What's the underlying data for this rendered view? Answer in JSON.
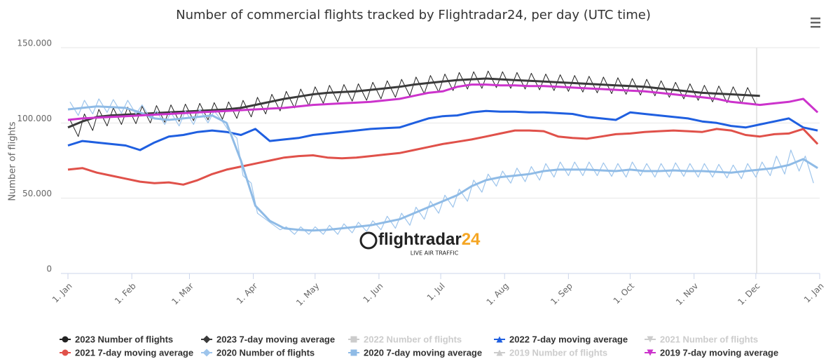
{
  "chart_data": {
    "type": "line",
    "title": "Number of commercial flights tracked by Flightradar24, per day (UTC time)",
    "y_label": "Number of flights",
    "watermark_main": "flightradar",
    "watermark_num": "24",
    "watermark_sub": "LIVE AIR TRAFFIC",
    "xlim": [
      0,
      365
    ],
    "xticks": [
      {
        "value": 0,
        "label": "1. Jan"
      },
      {
        "value": 31,
        "label": "1. Feb"
      },
      {
        "value": 59,
        "label": "1. Mar"
      },
      {
        "value": 90,
        "label": "1. Apr"
      },
      {
        "value": 120,
        "label": "1. May"
      },
      {
        "value": 151,
        "label": "1. Jun"
      },
      {
        "value": 181,
        "label": "1. Jul"
      },
      {
        "value": 212,
        "label": "1. Aug"
      },
      {
        "value": 243,
        "label": "1. Sep"
      },
      {
        "value": 273,
        "label": "1. Oct"
      },
      {
        "value": 304,
        "label": "1. Nov"
      },
      {
        "value": 334,
        "label": "1. Dec"
      },
      {
        "value": 365,
        "label": "1. Jan"
      }
    ],
    "ylim": [
      0,
      150000
    ],
    "yticks": [
      0,
      {
        "value": 50000,
        "label": "50.000"
      },
      {
        "value": 100000,
        "label": "100.000"
      },
      {
        "value": 150000,
        "label": "150.000"
      }
    ],
    "grid": true,
    "series": [
      {
        "name": "2023 Number of flights",
        "color": "#222222",
        "marker": "circle",
        "line_width": 1,
        "x": [
          1,
          5,
          8,
          12,
          15,
          19,
          22,
          26,
          29,
          33,
          36,
          40,
          43,
          47,
          50,
          54,
          57,
          61,
          64,
          68,
          71,
          75,
          78,
          82,
          85,
          89,
          92,
          96,
          99,
          103,
          106,
          110,
          113,
          117,
          120,
          124,
          127,
          131,
          134,
          138,
          141,
          145,
          148,
          152,
          155,
          159,
          162,
          166,
          169,
          173,
          176,
          180,
          183,
          187,
          190,
          194,
          197,
          201,
          204,
          208,
          211,
          215,
          218,
          222,
          225,
          229,
          232,
          236,
          239,
          243,
          246,
          250,
          253,
          257,
          260,
          264,
          267,
          271,
          274,
          278,
          281,
          285,
          288,
          292,
          295,
          299,
          302,
          306,
          309,
          313,
          316,
          320,
          323,
          327,
          330,
          334
        ],
        "values": [
          102000,
          91000,
          106000,
          95000,
          109000,
          98000,
          110000,
          99000,
          110500,
          99500,
          111000,
          100000,
          111500,
          100500,
          112000,
          101000,
          112500,
          101500,
          113000,
          102000,
          113500,
          102500,
          114000,
          103000,
          115000,
          104000,
          117000,
          106000,
          119000,
          108000,
          121000,
          110000,
          122500,
          111500,
          124000,
          113000,
          125000,
          114000,
          125500,
          114500,
          126000,
          115000,
          127000,
          116000,
          128000,
          117000,
          129000,
          118000,
          130500,
          119500,
          131500,
          120500,
          132500,
          121500,
          133500,
          122500,
          134000,
          123000,
          134500,
          123500,
          134000,
          123000,
          133500,
          122500,
          133000,
          122000,
          132500,
          121500,
          132000,
          121000,
          131500,
          120500,
          131000,
          120000,
          130500,
          119500,
          130000,
          119000,
          129500,
          118500,
          129000,
          118000,
          128000,
          117000,
          127000,
          116000,
          126000,
          115000,
          125000,
          114000,
          124500,
          113500,
          124000,
          113000,
          123500,
          112500
        ]
      },
      {
        "name": "2023 7-day moving average",
        "color": "#3a3a3a",
        "marker": "diamond",
        "line_width": 3,
        "x": [
          0,
          7,
          14,
          21,
          28,
          35,
          42,
          49,
          56,
          63,
          70,
          77,
          84,
          91,
          98,
          105,
          112,
          119,
          126,
          133,
          140,
          147,
          154,
          161,
          168,
          175,
          182,
          189,
          196,
          203,
          210,
          217,
          224,
          231,
          238,
          245,
          252,
          259,
          266,
          273,
          280,
          287,
          294,
          301,
          308,
          315,
          322,
          329,
          336
        ],
        "values": [
          97000,
          101000,
          104000,
          105000,
          105500,
          106000,
          106500,
          107000,
          107500,
          108000,
          108500,
          109000,
          110000,
          112000,
          114000,
          116000,
          117500,
          119000,
          120000,
          120500,
          121000,
          122000,
          123000,
          124000,
          125500,
          126500,
          127500,
          128500,
          129000,
          129500,
          129000,
          128500,
          128000,
          127500,
          127000,
          126500,
          126000,
          125500,
          125000,
          124500,
          124000,
          123000,
          122000,
          121000,
          120000,
          119500,
          119000,
          118500,
          118000
        ]
      },
      {
        "name": "2022 Number of flights",
        "color": "#cccccc",
        "marker": "square",
        "hidden": true
      },
      {
        "name": "2022 7-day moving average",
        "color": "#1f5fe0",
        "marker": "triangle",
        "line_width": 3,
        "x": [
          0,
          7,
          14,
          21,
          28,
          35,
          42,
          49,
          56,
          63,
          70,
          77,
          84,
          91,
          98,
          105,
          112,
          119,
          126,
          133,
          140,
          147,
          154,
          161,
          168,
          175,
          182,
          189,
          196,
          203,
          210,
          217,
          224,
          231,
          238,
          245,
          252,
          259,
          266,
          273,
          280,
          287,
          294,
          301,
          308,
          315,
          322,
          329,
          336,
          343,
          350,
          357,
          364
        ],
        "values": [
          85000,
          88000,
          87000,
          86000,
          85000,
          82000,
          87000,
          91000,
          92000,
          94000,
          95000,
          94000,
          92000,
          96000,
          88000,
          89000,
          90000,
          92000,
          93000,
          94000,
          95000,
          96000,
          96500,
          97000,
          100000,
          103000,
          104500,
          105000,
          107000,
          108000,
          107500,
          107500,
          107000,
          107000,
          106500,
          106000,
          104000,
          103000,
          102000,
          107000,
          106000,
          105000,
          104000,
          103000,
          101000,
          100000,
          98000,
          97000,
          99000,
          101000,
          103000,
          97000,
          95000
        ]
      },
      {
        "name": "2021 Number of flights",
        "color": "#cccccc",
        "marker": "triangle-down",
        "hidden": true
      },
      {
        "name": "2021 7-day moving average",
        "color": "#e0514a",
        "marker": "circle",
        "line_width": 3,
        "x": [
          0,
          7,
          14,
          21,
          28,
          35,
          42,
          49,
          56,
          63,
          70,
          77,
          84,
          91,
          98,
          105,
          112,
          119,
          126,
          133,
          140,
          147,
          154,
          161,
          168,
          175,
          182,
          189,
          196,
          203,
          210,
          217,
          224,
          231,
          238,
          245,
          252,
          259,
          266,
          273,
          280,
          287,
          294,
          301,
          308,
          315,
          322,
          329,
          336,
          343,
          350,
          357,
          364
        ],
        "values": [
          69000,
          70000,
          67000,
          65000,
          63000,
          61000,
          60000,
          60500,
          59000,
          62000,
          66000,
          69000,
          71000,
          73000,
          75000,
          77000,
          78000,
          78500,
          77000,
          76500,
          77000,
          78000,
          79000,
          80000,
          82000,
          84000,
          86000,
          87500,
          89000,
          91000,
          93000,
          95000,
          95000,
          94500,
          91000,
          90000,
          89500,
          91000,
          92500,
          93000,
          94000,
          94500,
          95000,
          94500,
          94000,
          96000,
          95000,
          92000,
          91000,
          92500,
          93000,
          96000,
          86000
        ]
      },
      {
        "name": "2020 Number of flights",
        "color": "#9ec5ec",
        "marker": "diamond",
        "line_width": 1.2,
        "x": [
          1,
          5,
          8,
          12,
          15,
          19,
          22,
          26,
          29,
          33,
          36,
          40,
          43,
          47,
          50,
          54,
          57,
          61,
          64,
          68,
          71,
          75,
          78,
          82,
          85,
          89,
          92,
          96,
          99,
          103,
          106,
          110,
          113,
          117,
          120,
          124,
          127,
          131,
          134,
          138,
          141,
          145,
          148,
          152,
          155,
          159,
          162,
          166,
          169,
          173,
          176,
          180,
          183,
          187,
          190,
          194,
          197,
          201,
          204,
          208,
          211,
          215,
          218,
          222,
          225,
          229,
          232,
          236,
          239,
          243,
          246,
          250,
          253,
          257,
          260,
          264,
          267,
          271,
          274,
          278,
          281,
          285,
          288,
          292,
          295,
          299,
          302,
          306,
          309,
          313,
          316,
          320,
          323,
          327,
          330,
          334,
          337,
          341,
          344,
          348,
          351,
          355,
          358,
          362
        ],
        "values": [
          114000,
          105000,
          115000,
          106000,
          116000,
          107000,
          115500,
          106500,
          115000,
          106000,
          112000,
          103000,
          108000,
          99000,
          107000,
          98000,
          108000,
          99000,
          109000,
          100000,
          108000,
          101000,
          95000,
          90000,
          65000,
          60000,
          40000,
          36000,
          33000,
          29000,
          31000,
          26000,
          31000,
          26000,
          31000,
          26000,
          32000,
          26000,
          33000,
          27000,
          34000,
          28000,
          35000,
          29000,
          38000,
          30000,
          40000,
          32000,
          44000,
          36000,
          48000,
          40000,
          52000,
          44000,
          56000,
          48000,
          62000,
          54000,
          66000,
          58000,
          68000,
          60000,
          70000,
          61000,
          71000,
          62000,
          73000,
          64000,
          74000,
          65000,
          74000,
          65000,
          74000,
          65000,
          73500,
          64500,
          73000,
          64000,
          74000,
          65000,
          73000,
          64000,
          73000,
          64000,
          73500,
          64500,
          73000,
          64000,
          73000,
          64000,
          72500,
          63500,
          72000,
          63000,
          73000,
          64000,
          74000,
          65000,
          78000,
          66000,
          82000,
          68000,
          78000,
          60000
        ]
      },
      {
        "name": "2020 7-day moving average",
        "color": "#8fbbe6",
        "marker": "square",
        "line_width": 3,
        "x": [
          0,
          7,
          14,
          21,
          28,
          35,
          42,
          49,
          56,
          63,
          70,
          77,
          84,
          91,
          98,
          105,
          112,
          119,
          126,
          133,
          140,
          147,
          154,
          161,
          168,
          175,
          182,
          189,
          196,
          203,
          210,
          217,
          224,
          231,
          238,
          245,
          252,
          259,
          266,
          273,
          280,
          287,
          294,
          301,
          308,
          315,
          322,
          329,
          336,
          343,
          350,
          357,
          364
        ],
        "values": [
          109000,
          110000,
          111000,
          110500,
          110000,
          107000,
          103000,
          102000,
          103000,
          104000,
          105000,
          100000,
          75000,
          45000,
          35000,
          30000,
          29000,
          28500,
          29000,
          30000,
          31000,
          32000,
          34000,
          36000,
          40000,
          44000,
          48000,
          52000,
          58000,
          62000,
          64000,
          65000,
          66000,
          68000,
          69000,
          69000,
          69000,
          68500,
          68000,
          69000,
          68000,
          68000,
          68500,
          68000,
          68000,
          67500,
          67000,
          68000,
          69000,
          70000,
          72000,
          76000,
          70000
        ]
      },
      {
        "name": "2019 Number of flights",
        "color": "#cccccc",
        "marker": "triangle",
        "hidden": true
      },
      {
        "name": "2019 7-day moving average",
        "color": "#cc33cc",
        "marker": "triangle-down",
        "line_width": 3,
        "x": [
          0,
          7,
          14,
          21,
          28,
          35,
          42,
          49,
          56,
          63,
          70,
          77,
          84,
          91,
          98,
          105,
          112,
          119,
          126,
          133,
          140,
          147,
          154,
          161,
          168,
          175,
          182,
          189,
          196,
          203,
          210,
          217,
          224,
          231,
          238,
          245,
          252,
          259,
          266,
          273,
          280,
          287,
          294,
          301,
          308,
          315,
          322,
          329,
          336,
          343,
          350,
          357,
          364
        ],
        "values": [
          102000,
          103000,
          103500,
          104000,
          104500,
          105000,
          105500,
          106000,
          106500,
          107000,
          107500,
          108000,
          108500,
          109000,
          109500,
          110000,
          111000,
          112000,
          112500,
          113000,
          113500,
          114000,
          115000,
          116000,
          118000,
          120000,
          121000,
          124000,
          125500,
          125500,
          125000,
          125000,
          124500,
          124500,
          124000,
          123500,
          123000,
          122500,
          122000,
          121500,
          121000,
          120000,
          119000,
          118000,
          117000,
          116000,
          114000,
          113000,
          112000,
          113000,
          114000,
          116000,
          107000
        ]
      }
    ]
  }
}
